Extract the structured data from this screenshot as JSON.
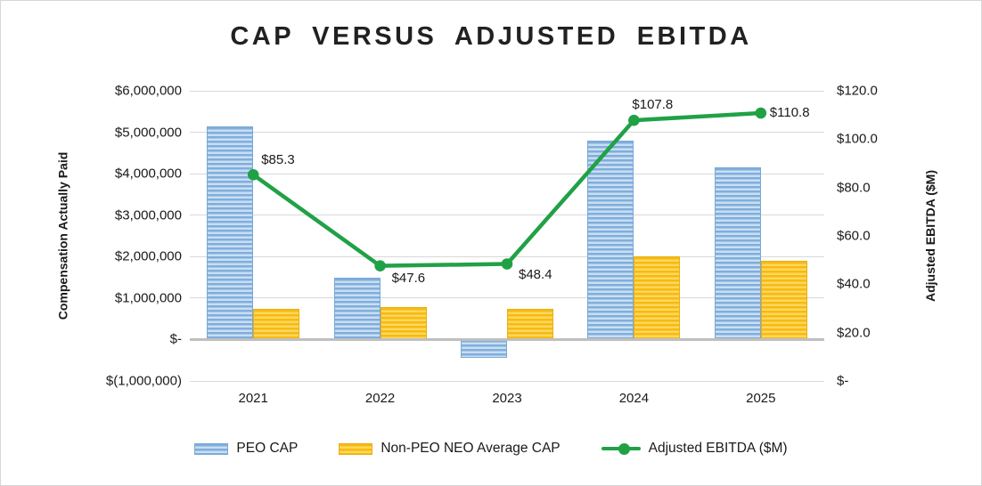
{
  "title": "CAP VERSUS ADJUSTED EBITDA",
  "chart_data": {
    "type": "bar",
    "subtype": "combo-bar-line",
    "title": "CAP VERSUS ADJUSTED EBITDA",
    "categories": [
      "2021",
      "2022",
      "2023",
      "2024",
      "2025"
    ],
    "series": [
      {
        "name": "PEO CAP",
        "render": "bar",
        "axis": "left",
        "values": [
          5150000,
          1500000,
          -450000,
          4800000,
          4150000
        ]
      },
      {
        "name": "Non-PEO NEO Average CAP",
        "render": "bar",
        "axis": "left",
        "values": [
          750000,
          780000,
          750000,
          2000000,
          1900000
        ]
      },
      {
        "name": "Adjusted EBITDA ($M)",
        "render": "line",
        "axis": "right",
        "values": [
          85.3,
          47.6,
          48.4,
          107.8,
          110.8
        ],
        "point_labels": [
          "$85.3",
          "$47.6",
          "$48.4",
          "$107.8",
          "$110.8"
        ]
      }
    ],
    "left_axis": {
      "title": "Compensation Actually Paid",
      "min": -1000000,
      "max": 6000000,
      "step": 1000000,
      "tick_labels": [
        "$6,000,000",
        "$5,000,000",
        "$4,000,000",
        "$3,000,000",
        "$2,000,000",
        "$1,000,000",
        "$-",
        "$(1,000,000)"
      ]
    },
    "right_axis": {
      "title": "Adjusted EBITDA ($M)",
      "min": 0,
      "max": 120,
      "step": 20,
      "tick_labels": [
        "$120.0",
        "$100.0",
        "$80.0",
        "$60.0",
        "$40.0",
        "$20.0",
        "$-"
      ]
    },
    "legend": {
      "position": "bottom",
      "entries": [
        "PEO CAP",
        "Non-PEO NEO Average CAP",
        "Adjusted EBITDA ($M)"
      ]
    },
    "grid": "horizontal-on"
  },
  "colors": {
    "blue_stripe_dark": "#7faedc",
    "blue_stripe_light": "#c9def2",
    "yellow_stripe_dark": "#f6ba10",
    "yellow_stripe_light": "#ffd75e",
    "line_green": "#21a146",
    "gridline": "#d9d9d9",
    "zero_line": "#bfbfbf",
    "text": "#1a1a1a"
  }
}
